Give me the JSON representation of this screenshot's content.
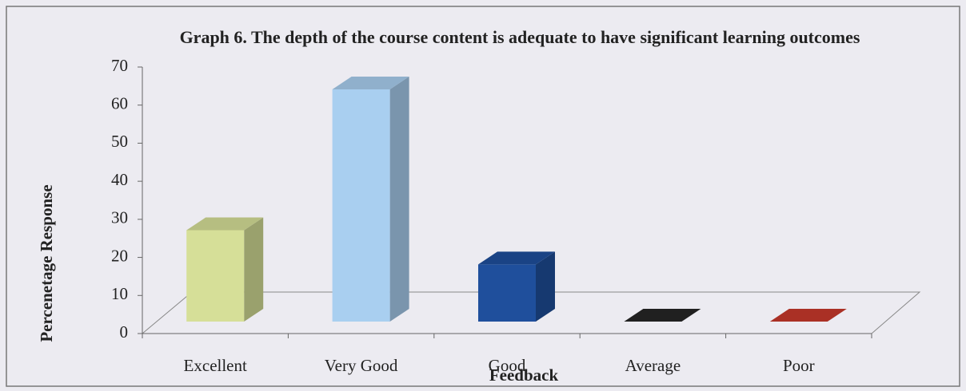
{
  "chart_data": {
    "type": "bar3d",
    "title": "Graph 6. The depth of the course content is adequate to have significant learning outcomes",
    "x_label": "Feedback",
    "y_label": "Percenetage Response",
    "categories": [
      "Excellent",
      "Very Good",
      "Good",
      "Average",
      "Poor"
    ],
    "values": [
      24,
      61,
      15,
      0,
      0
    ],
    "colors": [
      "#d6df98",
      "#a9cff0",
      "#1f4f9c",
      "#262626",
      "#c8392c"
    ],
    "ylim": [
      0,
      70
    ],
    "yticks": [
      0,
      10,
      20,
      30,
      40,
      50,
      60,
      70
    ]
  }
}
